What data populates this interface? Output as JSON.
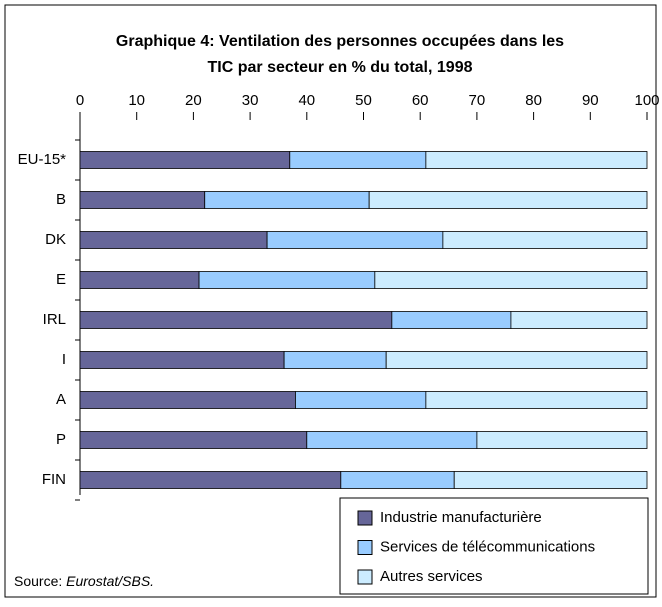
{
  "chart_data": {
    "type": "stacked_bar_horizontal",
    "title": [
      "Graphique 4: Ventilation des personnes occupées dans les",
      "TIC par secteur en % du total, 1998"
    ],
    "categories": [
      "EU-15*",
      "B",
      "DK",
      "E",
      "IRL",
      "I",
      "A",
      "P",
      "FIN"
    ],
    "series": [
      {
        "name": "Industrie manufacturière",
        "color": "#666699",
        "values": [
          37,
          22,
          33,
          21,
          55,
          36,
          38,
          40,
          46
        ]
      },
      {
        "name": "Services de télécommunications",
        "color": "#99ccff",
        "values": [
          24,
          29,
          31,
          31,
          21,
          18,
          23,
          30,
          20
        ]
      },
      {
        "name": "Autres services",
        "color": "#ccecff",
        "values": [
          39,
          49,
          36,
          48,
          24,
          46,
          39,
          30,
          34
        ]
      }
    ],
    "xlim": [
      0,
      100
    ],
    "xticks": [
      0,
      10,
      20,
      30,
      40,
      50,
      60,
      70,
      80,
      90,
      100
    ],
    "grid": false,
    "legend": "bottom-right",
    "source_label": "Source:",
    "source": "Eurostat/SBS."
  }
}
